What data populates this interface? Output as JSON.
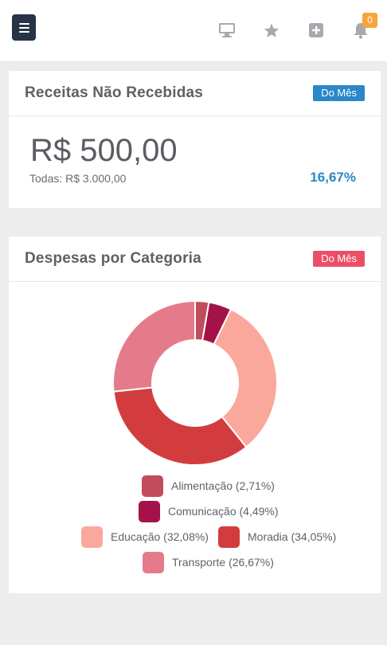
{
  "header": {
    "notification_count": "0",
    "icons": [
      "menu-icon",
      "desktop-icon",
      "star-icon",
      "plus-square-icon",
      "bell-icon"
    ]
  },
  "revenue_card": {
    "title": "Receitas Não Recebidas",
    "badge": "Do Mês",
    "value": "R$ 500,00",
    "total": "Todas: R$ 3.000,00",
    "percent": "16,67%"
  },
  "expense_card": {
    "title": "Despesas por Categoria",
    "badge": "Do Mês",
    "legend": [
      {
        "label": "Alimentação (2,71%)",
        "color": "#c24c5c"
      },
      {
        "label": "Comunicação (4,49%)",
        "color": "#a31349"
      },
      {
        "label": "Educação (32,08%)",
        "color": "#fba89c"
      },
      {
        "label": "Moradia (34,05%)",
        "color": "#d33c3f"
      },
      {
        "label": "Transporte (26,67%)",
        "color": "#e57b8a"
      }
    ]
  },
  "chart_data": {
    "type": "pie",
    "categories": [
      "Alimentação",
      "Comunicação",
      "Educação",
      "Moradia",
      "Transporte"
    ],
    "values": [
      2.71,
      4.49,
      32.08,
      34.05,
      26.67
    ],
    "colors": [
      "#c24c5c",
      "#a31349",
      "#fba89c",
      "#d33c3f",
      "#e57b8a"
    ]
  }
}
